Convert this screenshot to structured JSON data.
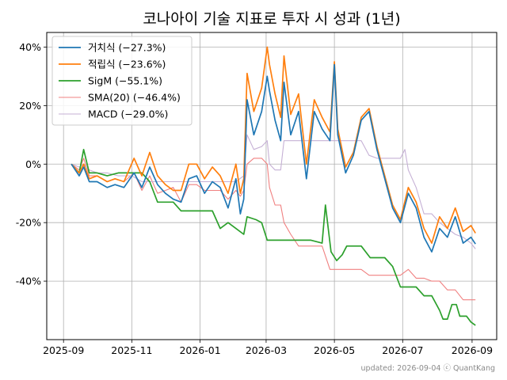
{
  "chart_data": {
    "type": "line",
    "title": "코나아이 기술 지표로 투자 시 성과 (1년)",
    "xlabel": "",
    "ylabel": "",
    "x_ticks": [
      "2025-09",
      "2025-11",
      "2026-01",
      "2026-03",
      "2026-05",
      "2026-07",
      "2026-09"
    ],
    "y_ticks": [
      "-40%",
      "-20%",
      "0%",
      "20%",
      "40%"
    ],
    "ylim": [
      -60,
      45
    ],
    "grid": true,
    "legend_position": "top-left",
    "series": [
      {
        "name": "거치식 (−27.3%)",
        "color": "#1f77b4",
        "points": [
          [
            "2025-09-08",
            0
          ],
          [
            "2025-09-15",
            -4
          ],
          [
            "2025-09-19",
            -1
          ],
          [
            "2025-09-24",
            -6
          ],
          [
            "2025-10-01",
            -6
          ],
          [
            "2025-10-10",
            -8
          ],
          [
            "2025-10-17",
            -7
          ],
          [
            "2025-10-25",
            -8
          ],
          [
            "2025-11-03",
            -3
          ],
          [
            "2025-11-10",
            -8
          ],
          [
            "2025-11-17",
            -1
          ],
          [
            "2025-11-24",
            -7
          ],
          [
            "2025-12-01",
            -10
          ],
          [
            "2025-12-08",
            -12
          ],
          [
            "2025-12-15",
            -13
          ],
          [
            "2025-12-22",
            -5
          ],
          [
            "2025-12-29",
            -4
          ],
          [
            "2026-01-05",
            -10
          ],
          [
            "2026-01-12",
            -6
          ],
          [
            "2026-01-19",
            -8
          ],
          [
            "2026-01-26",
            -15
          ],
          [
            "2026-02-02",
            -5
          ],
          [
            "2026-02-06",
            -17
          ],
          [
            "2026-02-09",
            -12
          ],
          [
            "2026-02-12",
            22
          ],
          [
            "2026-02-18",
            10
          ],
          [
            "2026-02-25",
            18
          ],
          [
            "2026-03-02",
            30
          ],
          [
            "2026-03-04",
            25
          ],
          [
            "2026-03-09",
            15
          ],
          [
            "2026-03-14",
            8
          ],
          [
            "2026-03-17",
            28
          ],
          [
            "2026-03-23",
            10
          ],
          [
            "2026-03-30",
            18
          ],
          [
            "2026-04-06",
            -5
          ],
          [
            "2026-04-13",
            18
          ],
          [
            "2026-04-20",
            12
          ],
          [
            "2026-04-27",
            8
          ],
          [
            "2026-05-01",
            34
          ],
          [
            "2026-05-04",
            10
          ],
          [
            "2026-05-11",
            -3
          ],
          [
            "2026-05-18",
            3
          ],
          [
            "2026-05-25",
            15
          ],
          [
            "2026-06-01",
            18
          ],
          [
            "2026-06-08",
            5
          ],
          [
            "2026-06-15",
            -5
          ],
          [
            "2026-06-22",
            -15
          ],
          [
            "2026-06-29",
            -20
          ],
          [
            "2026-07-06",
            -10
          ],
          [
            "2026-07-13",
            -15
          ],
          [
            "2026-07-20",
            -25
          ],
          [
            "2026-07-27",
            -30
          ],
          [
            "2026-08-03",
            -22
          ],
          [
            "2026-08-10",
            -25
          ],
          [
            "2026-08-17",
            -18
          ],
          [
            "2026-08-24",
            -27
          ],
          [
            "2026-08-31",
            -25
          ],
          [
            "2026-09-04",
            -27.3
          ]
        ]
      },
      {
        "name": "적립식 (−23.6%)",
        "color": "#ff7f0e",
        "points": [
          [
            "2025-09-08",
            0
          ],
          [
            "2025-09-15",
            -3
          ],
          [
            "2025-09-19",
            0
          ],
          [
            "2025-09-24",
            -5
          ],
          [
            "2025-10-01",
            -4
          ],
          [
            "2025-10-10",
            -6
          ],
          [
            "2025-10-17",
            -5
          ],
          [
            "2025-10-25",
            -6
          ],
          [
            "2025-11-03",
            2
          ],
          [
            "2025-11-10",
            -4
          ],
          [
            "2025-11-17",
            4
          ],
          [
            "2025-11-24",
            -4
          ],
          [
            "2025-12-01",
            -7
          ],
          [
            "2025-12-08",
            -9
          ],
          [
            "2025-12-15",
            -9
          ],
          [
            "2025-12-22",
            0
          ],
          [
            "2025-12-29",
            0
          ],
          [
            "2026-01-05",
            -5
          ],
          [
            "2026-01-12",
            -1
          ],
          [
            "2026-01-19",
            -4
          ],
          [
            "2026-01-26",
            -10
          ],
          [
            "2026-02-02",
            0
          ],
          [
            "2026-02-06",
            -10
          ],
          [
            "2026-02-09",
            -5
          ],
          [
            "2026-02-12",
            31
          ],
          [
            "2026-02-18",
            18
          ],
          [
            "2026-02-25",
            26
          ],
          [
            "2026-03-02",
            40
          ],
          [
            "2026-03-04",
            34
          ],
          [
            "2026-03-09",
            24
          ],
          [
            "2026-03-14",
            16
          ],
          [
            "2026-03-17",
            37
          ],
          [
            "2026-03-23",
            17
          ],
          [
            "2026-03-30",
            24
          ],
          [
            "2026-04-06",
            0
          ],
          [
            "2026-04-13",
            22
          ],
          [
            "2026-04-20",
            16
          ],
          [
            "2026-04-27",
            11
          ],
          [
            "2026-05-01",
            35
          ],
          [
            "2026-05-04",
            12
          ],
          [
            "2026-05-11",
            -1
          ],
          [
            "2026-05-18",
            4
          ],
          [
            "2026-05-25",
            16
          ],
          [
            "2026-06-01",
            19
          ],
          [
            "2026-06-08",
            6
          ],
          [
            "2026-06-15",
            -4
          ],
          [
            "2026-06-22",
            -14
          ],
          [
            "2026-06-29",
            -19
          ],
          [
            "2026-07-06",
            -8
          ],
          [
            "2026-07-13",
            -13
          ],
          [
            "2026-07-20",
            -22
          ],
          [
            "2026-07-27",
            -27
          ],
          [
            "2026-08-03",
            -18
          ],
          [
            "2026-08-10",
            -22
          ],
          [
            "2026-08-17",
            -15
          ],
          [
            "2026-08-24",
            -23
          ],
          [
            "2026-08-31",
            -21
          ],
          [
            "2026-09-04",
            -23.6
          ]
        ]
      },
      {
        "name": "SigM (−55.1%)",
        "color": "#2ca02c",
        "points": [
          [
            "2025-09-08",
            0
          ],
          [
            "2025-09-15",
            -3
          ],
          [
            "2025-09-19",
            5
          ],
          [
            "2025-09-24",
            -3
          ],
          [
            "2025-10-01",
            -3
          ],
          [
            "2025-10-10",
            -4
          ],
          [
            "2025-10-20",
            -3
          ],
          [
            "2025-11-01",
            -3
          ],
          [
            "2025-11-10",
            -3
          ],
          [
            "2025-11-17",
            -6
          ],
          [
            "2025-11-24",
            -13
          ],
          [
            "2025-12-01",
            -13
          ],
          [
            "2025-12-08",
            -13
          ],
          [
            "2025-12-15",
            -16
          ],
          [
            "2025-12-22",
            -16
          ],
          [
            "2026-01-01",
            -16
          ],
          [
            "2026-01-12",
            -16
          ],
          [
            "2026-01-19",
            -22
          ],
          [
            "2026-01-26",
            -20
          ],
          [
            "2026-02-02",
            -22
          ],
          [
            "2026-02-09",
            -24
          ],
          [
            "2026-02-12",
            -18
          ],
          [
            "2026-02-20",
            -19
          ],
          [
            "2026-02-25",
            -20
          ],
          [
            "2026-03-02",
            -26
          ],
          [
            "2026-03-16",
            -26
          ],
          [
            "2026-04-01",
            -26
          ],
          [
            "2026-04-10",
            -26
          ],
          [
            "2026-04-20",
            -27
          ],
          [
            "2026-04-23",
            -14
          ],
          [
            "2026-04-28",
            -30
          ],
          [
            "2026-05-03",
            -33
          ],
          [
            "2026-05-08",
            -31
          ],
          [
            "2026-05-12",
            -28
          ],
          [
            "2026-05-25",
            -28
          ],
          [
            "2026-06-02",
            -32
          ],
          [
            "2026-06-15",
            -32
          ],
          [
            "2026-06-22",
            -35
          ],
          [
            "2026-06-29",
            -42
          ],
          [
            "2026-07-06",
            -42
          ],
          [
            "2026-07-13",
            -42
          ],
          [
            "2026-07-20",
            -45
          ],
          [
            "2026-07-27",
            -45
          ],
          [
            "2026-08-03",
            -50
          ],
          [
            "2026-08-06",
            -53
          ],
          [
            "2026-08-10",
            -53
          ],
          [
            "2026-08-14",
            -48
          ],
          [
            "2026-08-18",
            -48
          ],
          [
            "2026-08-21",
            -52
          ],
          [
            "2026-08-27",
            -52
          ],
          [
            "2026-08-31",
            -54
          ],
          [
            "2026-09-04",
            -55.1
          ]
        ]
      },
      {
        "name": "SMA(20) (−46.4%)",
        "color": "#f08080",
        "points": [
          [
            "2025-09-08",
            0
          ],
          [
            "2025-09-15",
            -2
          ],
          [
            "2025-09-19",
            2
          ],
          [
            "2025-09-24",
            -4
          ],
          [
            "2025-10-01",
            -4
          ],
          [
            "2025-10-10",
            -6
          ],
          [
            "2025-10-17",
            -5
          ],
          [
            "2025-10-25",
            -6
          ],
          [
            "2025-11-03",
            -3
          ],
          [
            "2025-11-10",
            -9
          ],
          [
            "2025-11-17",
            -4
          ],
          [
            "2025-11-24",
            -10
          ],
          [
            "2025-12-01",
            -9
          ],
          [
            "2025-12-08",
            -8
          ],
          [
            "2025-12-15",
            -13
          ],
          [
            "2025-12-22",
            -7
          ],
          [
            "2025-12-29",
            -7
          ],
          [
            "2026-01-05",
            -9
          ],
          [
            "2026-01-12",
            -9
          ],
          [
            "2026-01-19",
            -9
          ],
          [
            "2026-01-26",
            -12
          ],
          [
            "2026-02-02",
            -9
          ],
          [
            "2026-02-06",
            -11
          ],
          [
            "2026-02-09",
            -9
          ],
          [
            "2026-02-12",
            0
          ],
          [
            "2026-02-18",
            2
          ],
          [
            "2026-02-25",
            2
          ],
          [
            "2026-03-02",
            0
          ],
          [
            "2026-03-04",
            -8
          ],
          [
            "2026-03-09",
            -14
          ],
          [
            "2026-03-14",
            -14
          ],
          [
            "2026-03-17",
            -20
          ],
          [
            "2026-03-23",
            -24
          ],
          [
            "2026-03-30",
            -28
          ],
          [
            "2026-04-06",
            -28
          ],
          [
            "2026-04-13",
            -28
          ],
          [
            "2026-04-20",
            -28
          ],
          [
            "2026-04-27",
            -36
          ],
          [
            "2026-05-04",
            -36
          ],
          [
            "2026-05-11",
            -36
          ],
          [
            "2026-05-18",
            -36
          ],
          [
            "2026-05-25",
            -36
          ],
          [
            "2026-06-01",
            -38
          ],
          [
            "2026-06-08",
            -38
          ],
          [
            "2026-06-15",
            -38
          ],
          [
            "2026-06-22",
            -38
          ],
          [
            "2026-06-29",
            -38
          ],
          [
            "2026-07-06",
            -36
          ],
          [
            "2026-07-13",
            -39
          ],
          [
            "2026-07-20",
            -39
          ],
          [
            "2026-07-27",
            -40
          ],
          [
            "2026-08-03",
            -40
          ],
          [
            "2026-08-10",
            -43
          ],
          [
            "2026-08-17",
            -43
          ],
          [
            "2026-08-24",
            -46.4
          ],
          [
            "2026-08-31",
            -46.4
          ],
          [
            "2026-09-04",
            -46.4
          ]
        ]
      },
      {
        "name": "MACD (−29.0%)",
        "color": "#c5b0d5",
        "points": [
          [
            "2025-09-08",
            0
          ],
          [
            "2025-09-15",
            -1
          ],
          [
            "2025-09-19",
            0
          ],
          [
            "2025-09-24",
            -2
          ],
          [
            "2025-10-01",
            -3
          ],
          [
            "2025-10-10",
            -3
          ],
          [
            "2025-10-20",
            -4
          ],
          [
            "2025-11-01",
            -4
          ],
          [
            "2025-11-10",
            -6
          ],
          [
            "2025-11-17",
            -6
          ],
          [
            "2025-11-24",
            -6
          ],
          [
            "2025-12-01",
            -6
          ],
          [
            "2025-12-15",
            -6
          ],
          [
            "2026-01-01",
            -6
          ],
          [
            "2026-01-12",
            -6
          ],
          [
            "2026-01-19",
            -6
          ],
          [
            "2026-01-26",
            -6
          ],
          [
            "2026-02-02",
            -6
          ],
          [
            "2026-02-09",
            -4
          ],
          [
            "2026-02-12",
            10
          ],
          [
            "2026-02-18",
            5
          ],
          [
            "2026-02-25",
            6
          ],
          [
            "2026-03-02",
            8
          ],
          [
            "2026-03-04",
            0
          ],
          [
            "2026-03-09",
            -2
          ],
          [
            "2026-03-14",
            -2
          ],
          [
            "2026-03-17",
            8
          ],
          [
            "2026-03-23",
            8
          ],
          [
            "2026-03-30",
            8
          ],
          [
            "2026-04-06",
            8
          ],
          [
            "2026-04-13",
            8
          ],
          [
            "2026-04-20",
            8
          ],
          [
            "2026-04-27",
            8
          ],
          [
            "2026-05-04",
            8
          ],
          [
            "2026-05-11",
            8
          ],
          [
            "2026-05-18",
            8
          ],
          [
            "2026-05-25",
            8
          ],
          [
            "2026-06-01",
            3
          ],
          [
            "2026-06-08",
            2
          ],
          [
            "2026-06-15",
            2
          ],
          [
            "2026-06-22",
            2
          ],
          [
            "2026-06-29",
            2
          ],
          [
            "2026-07-03",
            5
          ],
          [
            "2026-07-06",
            -2
          ],
          [
            "2026-07-13",
            -8
          ],
          [
            "2026-07-20",
            -17
          ],
          [
            "2026-07-27",
            -17
          ],
          [
            "2026-08-03",
            -20
          ],
          [
            "2026-08-10",
            -22
          ],
          [
            "2026-08-17",
            -24
          ],
          [
            "2026-08-24",
            -25
          ],
          [
            "2026-08-31",
            -27
          ],
          [
            "2026-09-04",
            -29
          ]
        ]
      }
    ]
  },
  "footer": "updated: 2026-09-04 ⓒ QuantKang"
}
